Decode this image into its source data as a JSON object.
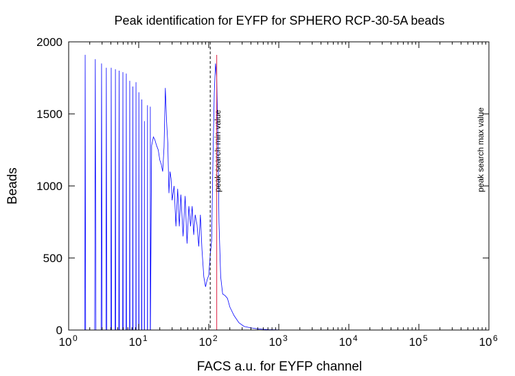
{
  "chart_data": {
    "type": "line",
    "title": "Peak identification for EYFP for SPHERO RCP-30-5A beads",
    "xlabel": "FACS a.u. for EYFP channel",
    "ylabel": "Beads",
    "x_scale": "log",
    "xlim": [
      1,
      1000000
    ],
    "ylim": [
      0,
      2000
    ],
    "x_ticks": [
      {
        "base": "10",
        "exp": "0",
        "value": 1
      },
      {
        "base": "10",
        "exp": "1",
        "value": 10
      },
      {
        "base": "10",
        "exp": "2",
        "value": 100
      },
      {
        "base": "10",
        "exp": "3",
        "value": 1000
      },
      {
        "base": "10",
        "exp": "4",
        "value": 10000
      },
      {
        "base": "10",
        "exp": "5",
        "value": 100000
      },
      {
        "base": "10",
        "exp": "6",
        "value": 1000000
      }
    ],
    "y_ticks": [
      "0",
      "500",
      "1000",
      "1500",
      "2000"
    ],
    "grid": false,
    "colors": {
      "series": "#0000ff",
      "peak_line": "#dd2244",
      "axis": "#000000"
    },
    "series": [
      {
        "values": [
          [
            1.0,
            0
          ],
          [
            1.7,
            0
          ],
          [
            1.72,
            1910
          ],
          [
            1.75,
            0
          ],
          [
            2.0,
            0
          ],
          [
            2.2,
            0
          ],
          [
            2.35,
            0
          ],
          [
            2.4,
            1880
          ],
          [
            2.45,
            0
          ],
          [
            2.9,
            0
          ],
          [
            2.95,
            1850
          ],
          [
            3.0,
            0
          ],
          [
            3.4,
            0
          ],
          [
            3.45,
            1820
          ],
          [
            3.5,
            0
          ],
          [
            4.0,
            0
          ],
          [
            4.05,
            1820
          ],
          [
            4.1,
            0
          ],
          [
            4.6,
            0
          ],
          [
            4.65,
            1810
          ],
          [
            4.7,
            0
          ],
          [
            5.2,
            0
          ],
          [
            5.25,
            1800
          ],
          [
            5.3,
            0
          ],
          [
            5.9,
            0
          ],
          [
            5.95,
            1790
          ],
          [
            6.0,
            0
          ],
          [
            6.6,
            0
          ],
          [
            6.65,
            1780
          ],
          [
            6.7,
            0
          ],
          [
            7.4,
            0
          ],
          [
            7.45,
            1730
          ],
          [
            7.5,
            0
          ],
          [
            8.2,
            0
          ],
          [
            8.25,
            1690
          ],
          [
            8.3,
            0
          ],
          [
            9.1,
            0
          ],
          [
            9.15,
            1720
          ],
          [
            9.2,
            0
          ],
          [
            10.0,
            0
          ],
          [
            10.05,
            1650
          ],
          [
            10.1,
            0
          ],
          [
            11.0,
            0
          ],
          [
            11.05,
            1600
          ],
          [
            11.1,
            0
          ],
          [
            12.0,
            0
          ],
          [
            12.05,
            1450
          ],
          [
            12.1,
            0
          ],
          [
            13.3,
            0
          ],
          [
            13.35,
            1560
          ],
          [
            13.4,
            0
          ],
          [
            14.6,
            0
          ],
          [
            14.65,
            1550
          ],
          [
            14.7,
            0
          ],
          [
            15.3,
            1280
          ],
          [
            16.2,
            1340
          ],
          [
            17.0,
            1320
          ],
          [
            18.0,
            1280
          ],
          [
            19.0,
            1250
          ],
          [
            20.0,
            1180
          ],
          [
            21.0,
            1150
          ],
          [
            22.0,
            1100
          ],
          [
            23.0,
            1270
          ],
          [
            24.0,
            1680
          ],
          [
            25.0,
            1450
          ],
          [
            26.0,
            1300
          ],
          [
            27.0,
            950
          ],
          [
            28.0,
            1100
          ],
          [
            29.0,
            1050
          ],
          [
            30.0,
            900
          ],
          [
            32.0,
            1000
          ],
          [
            34.0,
            720
          ],
          [
            36.0,
            980
          ],
          [
            38.0,
            720
          ],
          [
            40.0,
            940
          ],
          [
            43.0,
            650
          ],
          [
            46.0,
            930
          ],
          [
            49.0,
            600
          ],
          [
            52.0,
            860
          ],
          [
            55.0,
            720
          ],
          [
            58.0,
            860
          ],
          [
            61.0,
            660
          ],
          [
            64.0,
            800
          ],
          [
            68.0,
            730
          ],
          [
            72.0,
            580
          ],
          [
            76.0,
            800
          ],
          [
            80.0,
            560
          ],
          [
            85.0,
            370
          ],
          [
            90.0,
            300
          ],
          [
            95.0,
            350
          ],
          [
            100.0,
            380
          ],
          [
            105.0,
            520
          ],
          [
            110.0,
            620
          ],
          [
            115.0,
            1200
          ],
          [
            120.0,
            1650
          ],
          [
            125.0,
            1850
          ],
          [
            130.0,
            1750
          ],
          [
            135.0,
            1350
          ],
          [
            140.0,
            750
          ],
          [
            148.0,
            370
          ],
          [
            158.0,
            250
          ],
          [
            170.0,
            240
          ],
          [
            185.0,
            220
          ],
          [
            200.0,
            160
          ],
          [
            230.0,
            100
          ],
          [
            270.0,
            50
          ],
          [
            320.0,
            25
          ],
          [
            400.0,
            15
          ],
          [
            500.0,
            8
          ],
          [
            700.0,
            3
          ],
          [
            1000.0,
            1
          ],
          [
            1000000.0,
            0
          ]
        ]
      }
    ],
    "markers": [
      {
        "type": "vline",
        "x": 105,
        "style": "dashed",
        "label": "peak search min value"
      },
      {
        "type": "vline",
        "x": 130,
        "style": "solid",
        "label": ""
      },
      {
        "type": "vline",
        "x": 1000000,
        "style": "none",
        "label": "peak search max value"
      }
    ]
  }
}
